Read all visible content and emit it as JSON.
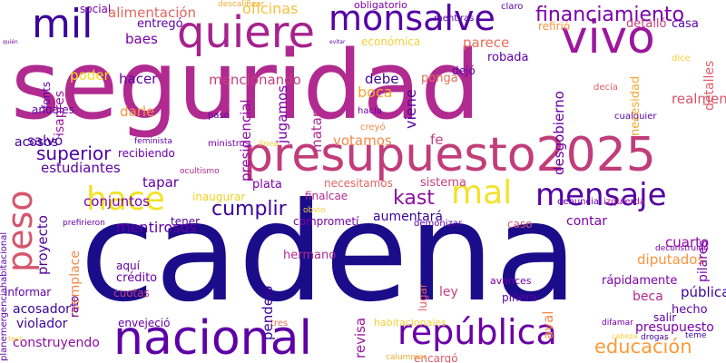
{
  "words": [
    {
      "text": "seguridad",
      "color": "#b12a90"
    },
    {
      "text": "cadena",
      "color": "#1b0c8a"
    },
    {
      "text": "presupuesto2025",
      "color": "#c13d7a"
    },
    {
      "text": "nacional",
      "color": "#5d01a6"
    },
    {
      "text": "monsalve",
      "color": "#5402a3"
    },
    {
      "text": "quiere",
      "color": "#a6228e"
    },
    {
      "text": "vivo",
      "color": "#9c179e"
    },
    {
      "text": "mil",
      "color": "#3b049a"
    },
    {
      "text": "república",
      "color": "#6a00a8"
    },
    {
      "text": "mensaje",
      "color": "#5402a3"
    },
    {
      "text": "hace",
      "color": "#f2e224"
    },
    {
      "text": "mal",
      "color": "#f3e228"
    },
    {
      "text": "peso",
      "color": "#d6556d"
    },
    {
      "text": "financiamiento",
      "color": "#7a02a8"
    },
    {
      "text": "educación",
      "color": "#f99b38"
    },
    {
      "text": "superior",
      "color": "#4c02a1"
    },
    {
      "text": "cumplir",
      "color": "#3d049b"
    },
    {
      "text": "kast",
      "color": "#8f0da4"
    },
    {
      "text": "alimentación",
      "color": "#e26561"
    },
    {
      "text": "oficinas",
      "color": "#f7c13a"
    },
    {
      "text": "estudiantes",
      "color": "#5d01a6"
    },
    {
      "text": "mencionando",
      "color": "#c5407e"
    },
    {
      "text": "hacer",
      "color": "#5d01a6"
    },
    {
      "text": "poder",
      "color": "#f5de24"
    },
    {
      "text": "baes",
      "color": "#7701a8"
    },
    {
      "text": "entregó",
      "color": "#5d01a6"
    },
    {
      "text": "social",
      "color": "#7e03a8"
    },
    {
      "text": "obligatorio",
      "color": "#7e03a8"
    },
    {
      "text": "casa",
      "color": "#5402a3"
    },
    {
      "text": "detalló",
      "color": "#c5407e"
    },
    {
      "text": "refirió",
      "color": "#f89540"
    },
    {
      "text": "parece",
      "color": "#e76f5a"
    },
    {
      "text": "debe",
      "color": "#3b049a"
    },
    {
      "text": "económica",
      "color": "#f7cf3a"
    },
    {
      "text": "robada",
      "color": "#5d01a6"
    },
    {
      "text": "ponga",
      "color": "#e76f5a"
    },
    {
      "text": "dejó",
      "color": "#5d01a6"
    },
    {
      "text": "boca",
      "color": "#f1aa2f"
    },
    {
      "text": "jugamos",
      "color": "#7a02a8"
    },
    {
      "text": "viene",
      "color": "#5402a3"
    },
    {
      "text": "desgobierno",
      "color": "#6a00a8"
    },
    {
      "text": "necesidad",
      "color": "#f1aa2f"
    },
    {
      "text": "detalles",
      "color": "#e35b67"
    },
    {
      "text": "isapres",
      "color": "#9c179e"
    },
    {
      "text": "fonts",
      "color": "#5d01a6"
    },
    {
      "text": "anuales",
      "color": "#5d01a6"
    },
    {
      "text": "darle",
      "color": "#f89540"
    },
    {
      "text": "acosos",
      "color": "#3b049a"
    },
    {
      "text": "salvó",
      "color": "#5402a3"
    },
    {
      "text": "recibiendo",
      "color": "#6a00a8"
    },
    {
      "text": "presidencial",
      "color": "#8f0da4"
    },
    {
      "text": "matar",
      "color": "#b12a90"
    },
    {
      "text": "votamos",
      "color": "#f3894a"
    },
    {
      "text": "fe",
      "color": "#c5407e"
    },
    {
      "text": "realmente",
      "color": "#d6556d"
    },
    {
      "text": "tapar",
      "color": "#5d01a6"
    },
    {
      "text": "conjuntos",
      "color": "#7e03a8"
    },
    {
      "text": "proyecto",
      "color": "#5402a3"
    },
    {
      "text": "plata",
      "color": "#7e03a8"
    },
    {
      "text": "finalcae",
      "color": "#b12a90"
    },
    {
      "text": "necesitamos",
      "color": "#e26561"
    },
    {
      "text": "sistema",
      "color": "#c5407e"
    },
    {
      "text": "inaugurar",
      "color": "#f2d122"
    },
    {
      "text": "aumentará",
      "color": "#3b049a"
    },
    {
      "text": "contar",
      "color": "#7e03a8"
    },
    {
      "text": "tener",
      "color": "#5402a3"
    },
    {
      "text": "comprometí",
      "color": "#7a02a8"
    },
    {
      "text": "pendejo",
      "color": "#3d049b"
    },
    {
      "text": "mentirosos",
      "color": "#5d01a6"
    },
    {
      "text": "reemplace",
      "color": "#f3894a"
    },
    {
      "text": "rato",
      "color": "#5d01a6"
    },
    {
      "text": "cuarto",
      "color": "#8f0da4"
    },
    {
      "text": "diputados",
      "color": "#f89540"
    },
    {
      "text": "pilares",
      "color": "#7e03a8"
    },
    {
      "text": "rápidamente",
      "color": "#7e03a8"
    },
    {
      "text": "aval",
      "color": "#f3894a"
    },
    {
      "text": "aquí",
      "color": "#5d01a6"
    },
    {
      "text": "hermano",
      "color": "#b12a90"
    },
    {
      "text": "crédito",
      "color": "#6a00a8"
    },
    {
      "text": "cuotas",
      "color": "#c13d7a"
    },
    {
      "text": "informar",
      "color": "#5d01a6"
    },
    {
      "text": "acosador",
      "color": "#3b049a"
    },
    {
      "text": "violador",
      "color": "#3b049a"
    },
    {
      "text": "envejeció",
      "color": "#6a00a8"
    },
    {
      "text": "construyendo",
      "color": "#8f0da4"
    },
    {
      "text": "revisa",
      "color": "#9c179e"
    },
    {
      "text": "lugar",
      "color": "#e35b67"
    },
    {
      "text": "ley",
      "color": "#c5407e"
    },
    {
      "text": "piñera",
      "color": "#5d01a6"
    },
    {
      "text": "avances",
      "color": "#7701a8"
    },
    {
      "text": "beca",
      "color": "#b12a90"
    },
    {
      "text": "pública",
      "color": "#3b049a"
    },
    {
      "text": "hecho",
      "color": "#5d01a6"
    },
    {
      "text": "salir",
      "color": "#5d01a6"
    },
    {
      "text": "presupuesto",
      "color": "#7a02a8"
    },
    {
      "text": "habitacionales",
      "color": "#f7cf3a"
    },
    {
      "text": "encargó",
      "color": "#e35b67"
    },
    {
      "text": "tres",
      "color": "#e76f5a"
    },
    {
      "text": "caso",
      "color": "#d6556d"
    },
    {
      "text": "descalificar",
      "color": "#f1aa2f"
    },
    {
      "text": "mentiras",
      "color": "#5402a3"
    },
    {
      "text": "claro",
      "color": "#5d01a6"
    },
    {
      "text": "hacía",
      "color": "#6a00a8"
    },
    {
      "text": "cualquier",
      "color": "#5d01a6"
    },
    {
      "text": "decía",
      "color": "#e35b67"
    },
    {
      "text": "dice",
      "color": "#f7cf3a"
    },
    {
      "text": "creyó",
      "color": "#f3894a"
    },
    {
      "text": "pasó",
      "color": "#5d01a6"
    },
    {
      "text": "ministros",
      "color": "#7e03a8"
    },
    {
      "text": "línea",
      "color": "#f7cf3a"
    },
    {
      "text": "feminista",
      "color": "#5d01a6"
    },
    {
      "text": "ocultismo",
      "color": "#b12a90"
    },
    {
      "text": "prefirieron",
      "color": "#6a00a8"
    },
    {
      "text": "denuncia",
      "color": "#5d01a6"
    },
    {
      "text": "izquierda",
      "color": "#9c179e"
    },
    {
      "text": "demonizar",
      "color": "#5d01a6"
    },
    {
      "text": "difamar",
      "color": "#7a02a8"
    },
    {
      "text": "drogas",
      "color": "#3b049a"
    },
    {
      "text": "teme",
      "color": "#3b049a"
    },
    {
      "text": "calumniar",
      "color": "#f1aa2f"
    },
    {
      "text": "deconstruido",
      "color": "#7a02a8"
    },
    {
      "text": "planemergenciahabitacional",
      "color": "#5d01a6"
    },
    {
      "text": "quién",
      "color": "#7a02a8"
    },
    {
      "text": "evitar",
      "color": "#5d01a6"
    },
    {
      "text": "cabeza",
      "color": "#f7cf3a"
    },
    {
      "text": "test",
      "color": "#f7cf3a"
    },
    {
      "text": "obvio",
      "color": "#f7cf3a"
    }
  ]
}
